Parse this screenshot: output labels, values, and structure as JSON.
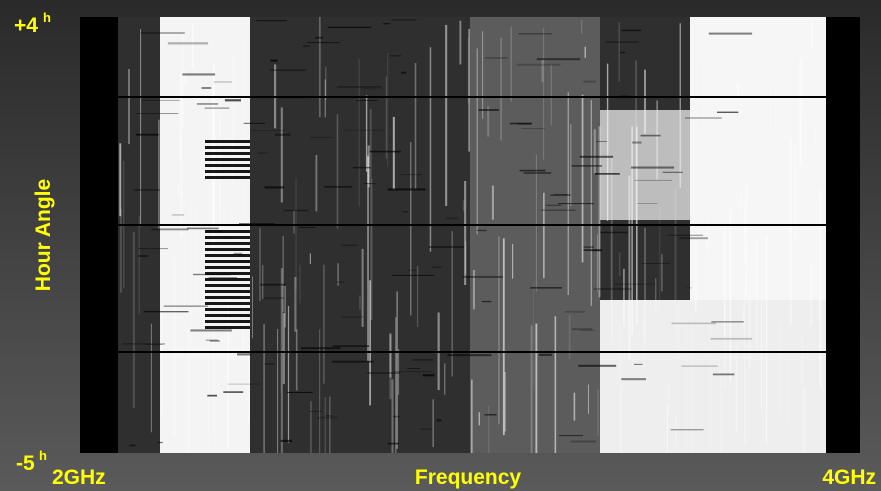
{
  "y_axis": {
    "title": "Hour Angle",
    "top": {
      "text": "+4",
      "sup": "h"
    },
    "bottom": {
      "text": "-5",
      "sup": "h"
    }
  },
  "x_axis": {
    "title": "Frequency",
    "left": "2GHz",
    "right": "4GHz"
  }
}
